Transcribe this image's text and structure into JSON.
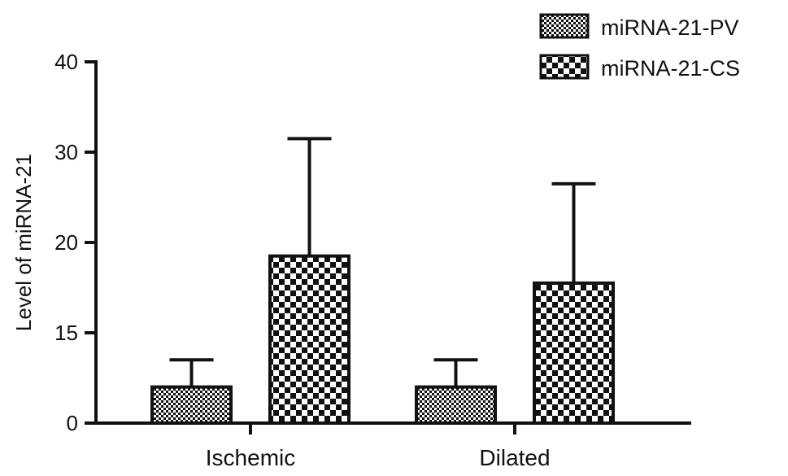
{
  "chart_data": {
    "type": "bar",
    "title": "",
    "xlabel": "",
    "ylabel": "Level of miRNA-21",
    "categories": [
      "Ischemic",
      "Dilated"
    ],
    "y_ticks": [
      "0",
      "15",
      "20",
      "30",
      "40"
    ],
    "ylim": [
      0,
      40
    ],
    "grid": false,
    "legend_position": "top-right",
    "series": [
      {
        "name": "miRNA-21-PV",
        "pattern": "fine-checker",
        "values": [
          4,
          4
        ],
        "error_upper": [
          7,
          7
        ]
      },
      {
        "name": "miRNA-21-CS",
        "pattern": "coarse-checker",
        "values": [
          18.5,
          15.5
        ],
        "error_upper": [
          31.5,
          26.5
        ]
      }
    ],
    "colors": {
      "ink": "#111111",
      "background": "#ffffff"
    }
  }
}
